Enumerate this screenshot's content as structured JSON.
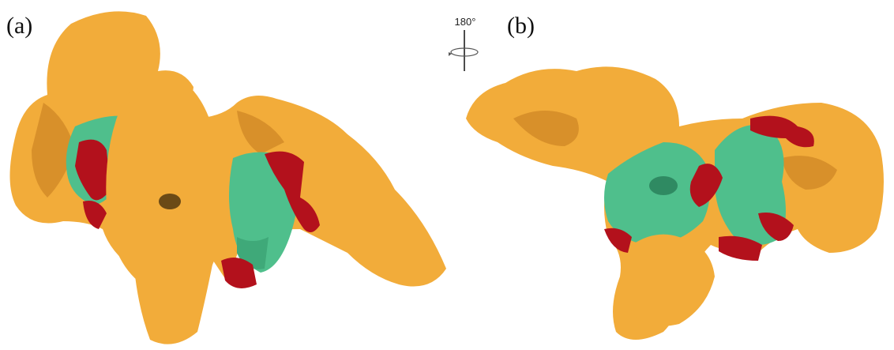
{
  "panels": [
    {
      "label": "(a)"
    },
    {
      "label": "(b)"
    }
  ],
  "rotation": {
    "label": "180°"
  }
}
